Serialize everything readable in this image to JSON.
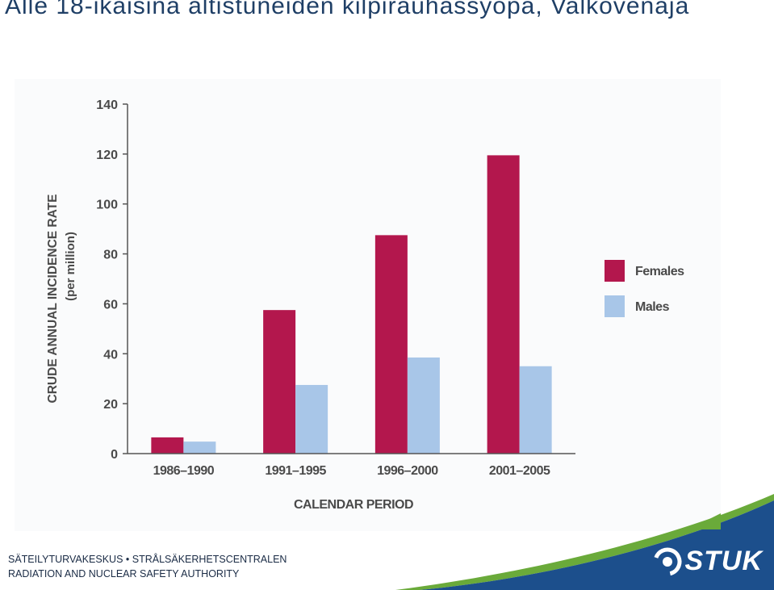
{
  "slide": {
    "title": "Alle 18-ikäisinä altistuneiden kilpirauhassyöpä, Valkovenäjä"
  },
  "colors": {
    "females": "#b3174d",
    "males": "#a8c6e8",
    "axis": "#555555",
    "label": "#4a4a4a",
    "brand_blue": "#1c4f8c",
    "brand_green": "#6aaa3a"
  },
  "chart_data": {
    "type": "bar",
    "title": "",
    "xlabel": "CALENDAR PERIOD",
    "ylabel": "CRUDE ANNUAL INCIDENCE RATE",
    "ylabel_sub": "(per million)",
    "ylim": [
      0,
      140
    ],
    "yticks": [
      "0",
      "20",
      "40",
      "60",
      "80",
      "100",
      "120",
      "140"
    ],
    "categories": [
      "1986–1990",
      "1991–1995",
      "1996–2000",
      "2001–2005"
    ],
    "series": [
      {
        "name": "Females",
        "values": [
          6.5,
          57.5,
          87.5,
          119.5
        ]
      },
      {
        "name": "Males",
        "values": [
          4.8,
          27.5,
          38.5,
          35
        ]
      }
    ],
    "legend_position": "right",
    "grid": false
  },
  "footer": {
    "line1": "SÄTEILYTURVAKESKUS • STRÅLSÄKERHETSCENTRALEN",
    "line2": "RADIATION AND NUCLEAR SAFETY AUTHORITY"
  },
  "logo": {
    "text": "STUK",
    "icon": "stuk-swirl-icon"
  }
}
